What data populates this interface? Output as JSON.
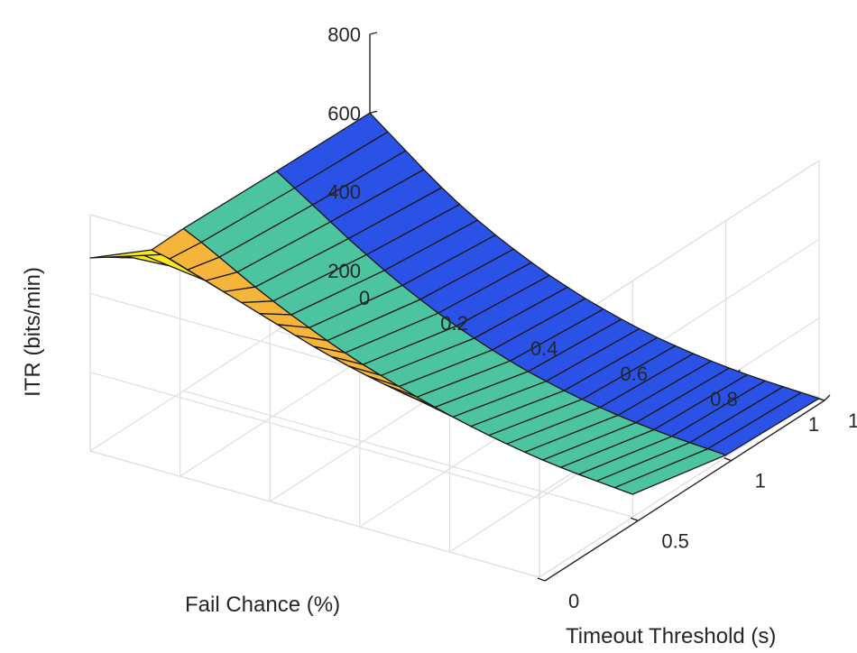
{
  "chart_data": {
    "type": "surface",
    "title": "",
    "xlabel": "Fail Chance (%)",
    "ylabel": "Timeout Threshold (s)",
    "zlabel": "ITR (bits/min)",
    "x_ticks": [
      "0",
      "0.2",
      "0.4",
      "0.6",
      "0.8",
      "1"
    ],
    "y_ticks": [
      "0",
      "0.5",
      "1",
      "1.5"
    ],
    "z_ticks": [
      "200",
      "400",
      "600",
      "800"
    ],
    "xlim": [
      0,
      1
    ],
    "ylim": [
      0,
      1.5
    ],
    "zlim": [
      200,
      800
    ],
    "grid": true,
    "colormap": "parula",
    "band_colors": [
      "#f9e81c",
      "#f5b43a",
      "#4dc4a0",
      "#2a52e6",
      "#332a9a"
    ],
    "timeout_threshold": [
      0,
      0.33,
      0.5,
      1.0,
      1.5
    ],
    "fail_chance": [
      0,
      0.04,
      0.08,
      0.12,
      0.16,
      0.2,
      0.24,
      0.28,
      0.32,
      0.36,
      0.4,
      0.44,
      0.48,
      0.52,
      0.56,
      0.6,
      0.64,
      0.68,
      0.72,
      0.76,
      0.8,
      0.84,
      0.88,
      0.92,
      0.96,
      1.0
    ],
    "itr": [
      [
        690,
        705,
        720,
        735,
        750,
        765,
        780,
        790,
        800,
        808,
        815,
        822,
        828,
        832,
        836,
        840,
        842,
        845,
        847,
        849,
        851,
        853,
        854,
        856,
        858,
        860
      ],
      [
        610,
        600,
        585,
        570,
        555,
        540,
        525,
        510,
        495,
        480,
        467,
        455,
        444,
        434,
        425,
        417,
        410,
        403,
        397,
        392,
        387,
        383,
        379,
        376,
        373,
        370
      ],
      [
        612,
        590,
        565,
        540,
        515,
        492,
        470,
        450,
        430,
        412,
        395,
        380,
        365,
        351,
        338,
        326,
        315,
        305,
        296,
        288,
        281,
        275,
        270,
        266,
        262,
        258
      ],
      [
        605,
        575,
        545,
        515,
        485,
        457,
        430,
        405,
        382,
        360,
        340,
        322,
        305,
        290,
        276,
        264,
        253,
        244,
        236,
        229,
        223,
        218,
        214,
        211,
        208,
        205
      ],
      [
        600,
        565,
        530,
        495,
        462,
        432,
        405,
        380,
        357,
        336,
        316,
        299,
        283,
        269,
        256,
        245,
        235,
        227,
        220,
        214,
        209,
        205,
        202,
        200,
        198,
        196
      ]
    ]
  }
}
